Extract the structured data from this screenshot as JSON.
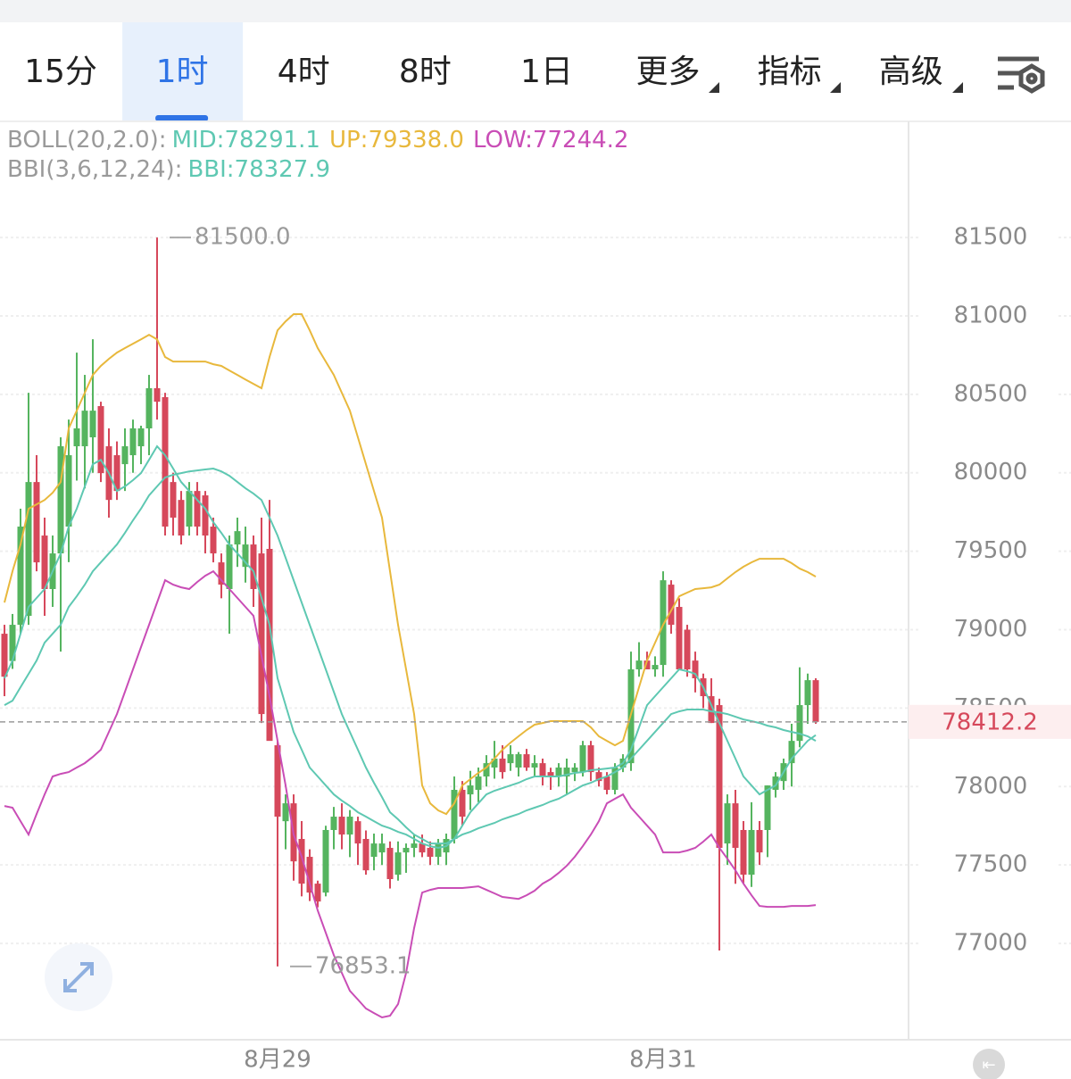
{
  "tabs": [
    "15分",
    "1时",
    "4时",
    "8时",
    "1日",
    "更多",
    "指标",
    "高级"
  ],
  "selected_tab": 1,
  "chart_data": {
    "type": "candlestick",
    "indicator_groups": [
      "BOLL(20,2.0):",
      "BBI(3,6,12,24):"
    ],
    "max_label": "81500.0",
    "min_label": "76853.1",
    "up_color": "#55b45f",
    "down_color": "#d6485b",
    "ylim": [
      76386,
      82240
    ],
    "yticks": [
      77000,
      77500,
      78000,
      78500,
      79000,
      79500,
      80000,
      80500,
      81000,
      81500
    ],
    "grid": true,
    "categories": [
      null,
      null,
      null,
      null,
      null,
      null,
      null,
      null,
      null,
      null,
      null,
      null,
      null,
      null,
      null,
      null,
      null,
      null,
      null,
      null,
      null,
      null,
      null,
      null,
      null,
      null,
      null,
      null,
      null,
      null,
      null,
      null,
      null,
      null,
      "8月29",
      null,
      null,
      null,
      null,
      null,
      null,
      null,
      null,
      null,
      null,
      null,
      null,
      null,
      null,
      null,
      null,
      null,
      null,
      null,
      null,
      null,
      null,
      null,
      null,
      null,
      null,
      null,
      null,
      null,
      null,
      null,
      null,
      null,
      null,
      null,
      null,
      null,
      null,
      null,
      null,
      null,
      null,
      null,
      null,
      null,
      null,
      null,
      "8月31",
      null,
      null,
      null,
      null,
      null,
      null,
      null,
      null,
      null,
      null,
      null,
      null,
      null,
      null,
      null,
      null,
      null,
      null,
      null
    ],
    "ohlc": [
      [
        78974,
        79031,
        78576,
        78700
      ],
      [
        78800,
        79100,
        78750,
        79031
      ],
      [
        79031,
        79771,
        78974,
        79657
      ],
      [
        79088,
        80510,
        79031,
        79941
      ],
      [
        79941,
        80112,
        79372,
        79429
      ],
      [
        79600,
        79714,
        79088,
        79259
      ],
      [
        79259,
        79600,
        79145,
        79486
      ],
      [
        79486,
        80226,
        78860,
        80169
      ],
      [
        79657,
        80339,
        79430,
        80112
      ],
      [
        80169,
        80766,
        79950,
        80283
      ],
      [
        80169,
        80624,
        79900,
        80396
      ],
      [
        80226,
        80851,
        80000,
        80396
      ],
      [
        80425,
        80453,
        79941,
        79998
      ],
      [
        80169,
        80283,
        79714,
        79827
      ],
      [
        80112,
        80200,
        79827,
        79884
      ],
      [
        80055,
        80283,
        79884,
        80169
      ],
      [
        80112,
        80339,
        80000,
        80283
      ],
      [
        80169,
        80300,
        80055,
        80283
      ],
      [
        80283,
        80624,
        80112,
        80539
      ],
      [
        80539,
        81500,
        80339,
        80453
      ],
      [
        80482,
        80510,
        79600,
        79657
      ],
      [
        79941,
        80000,
        79600,
        79714
      ],
      [
        79827,
        79884,
        79543,
        79600
      ],
      [
        79657,
        79941,
        79600,
        79884
      ],
      [
        79884,
        79941,
        79600,
        79657
      ],
      [
        79856,
        79884,
        79486,
        79600
      ],
      [
        79657,
        79714,
        79429,
        79486
      ],
      [
        79429,
        79486,
        79200,
        79287
      ],
      [
        79259,
        79600,
        78974,
        79543
      ],
      [
        79543,
        79714,
        79400,
        79628
      ],
      [
        79400,
        79657,
        79300,
        79543
      ],
      [
        79543,
        79600,
        79145,
        79259
      ],
      [
        79486,
        79714,
        78405,
        78462
      ],
      [
        79515,
        79827,
        78300,
        78291
      ],
      [
        78263,
        78291,
        76853.1,
        77808
      ],
      [
        77779,
        77950,
        77600,
        77893
      ],
      [
        77893,
        77950,
        77400,
        77523
      ],
      [
        77666,
        77780,
        77300,
        77381
      ],
      [
        77552,
        77600,
        77270,
        77324
      ],
      [
        77381,
        77400,
        77230,
        77267
      ],
      [
        77324,
        77750,
        77300,
        77723
      ],
      [
        77723,
        77870,
        77600,
        77808
      ],
      [
        77808,
        77893,
        77600,
        77694
      ],
      [
        77694,
        77850,
        77550,
        77808
      ],
      [
        77779,
        77808,
        77500,
        77637
      ],
      [
        77666,
        77720,
        77438,
        77466
      ],
      [
        77552,
        77700,
        77466,
        77637
      ],
      [
        77580,
        77700,
        77500,
        77637
      ],
      [
        77609,
        77650,
        77350,
        77410
      ],
      [
        77438,
        77650,
        77400,
        77580
      ],
      [
        77580,
        77637,
        77450,
        77609
      ],
      [
        77609,
        77694,
        77550,
        77637
      ],
      [
        77637,
        77694,
        77550,
        77580
      ],
      [
        77609,
        77650,
        77500,
        77552
      ],
      [
        77552,
        77666,
        77500,
        77637
      ],
      [
        77580,
        77700,
        77500,
        77666
      ],
      [
        77666,
        78064,
        77637,
        77979
      ],
      [
        77979,
        78035,
        77750,
        77808
      ],
      [
        77950,
        78100,
        77850,
        78007
      ],
      [
        77979,
        78121,
        77900,
        78064
      ],
      [
        78064,
        78200,
        78000,
        78149
      ],
      [
        78121,
        78291,
        78050,
        78178
      ],
      [
        78178,
        78263,
        78050,
        78092
      ],
      [
        78149,
        78263,
        78100,
        78206
      ],
      [
        78121,
        78220,
        78064,
        78206
      ],
      [
        78206,
        78240,
        78100,
        78121
      ],
      [
        78121,
        78200,
        78064,
        78149
      ],
      [
        78149,
        78178,
        78007,
        78064
      ],
      [
        78092,
        78120,
        77979,
        78064
      ],
      [
        78064,
        78149,
        78000,
        78121
      ],
      [
        78064,
        78178,
        77950,
        78121
      ],
      [
        78092,
        78149,
        78035,
        78121
      ],
      [
        78092,
        78291,
        78064,
        78263
      ],
      [
        78263,
        78291,
        78035,
        78092
      ],
      [
        78092,
        78121,
        78000,
        78035
      ],
      [
        78064,
        78092,
        77950,
        77979
      ],
      [
        77979,
        78149,
        77950,
        78121
      ],
      [
        78121,
        78206,
        78092,
        78178
      ],
      [
        78149,
        78860,
        78100,
        78747
      ],
      [
        78747,
        78920,
        78700,
        78803
      ],
      [
        78803,
        78860,
        78747,
        78747
      ],
      [
        78747,
        78830,
        78700,
        78775
      ],
      [
        78775,
        79372,
        78700,
        79315
      ],
      [
        79287,
        79315,
        78974,
        79031
      ],
      [
        79145,
        79200,
        78747,
        78747
      ],
      [
        79000,
        79031,
        78700,
        78747
      ],
      [
        78803,
        78860,
        78600,
        78690
      ],
      [
        78690,
        78720,
        78500,
        78576
      ],
      [
        78576,
        78690,
        78405,
        78405
      ],
      [
        78519,
        78560,
        76955,
        77609
      ],
      [
        77637,
        77950,
        77500,
        77893
      ],
      [
        77893,
        77979,
        77380,
        77609
      ],
      [
        77723,
        77780,
        77380,
        77438
      ],
      [
        77438,
        77900,
        77360,
        77723
      ],
      [
        77723,
        77780,
        77500,
        77580
      ],
      [
        77723,
        78007,
        77550,
        78007
      ],
      [
        77979,
        78092,
        77930,
        78064
      ],
      [
        78035,
        78178,
        77979,
        78149
      ],
      [
        78149,
        78400,
        78000,
        78291
      ],
      [
        78291,
        78760,
        78250,
        78519
      ],
      [
        78519,
        78720,
        78400,
        78678
      ],
      [
        78678,
        78690,
        78400,
        78412.2
      ]
    ],
    "series": [
      {
        "name": "MID:78291.1",
        "color": "#5ec8b2",
        "values": [
          78519,
          78547,
          78633,
          78718,
          78803,
          78917,
          78974,
          79031,
          79145,
          79213,
          79287,
          79372,
          79429,
          79486,
          79543,
          79617,
          79697,
          79771,
          79856,
          79913,
          79970,
          79987,
          79998,
          80009,
          80015,
          80021,
          80027,
          80009,
          79981,
          79941,
          79901,
          79867,
          79827,
          79714,
          79600,
          79458,
          79315,
          79173,
          79031,
          78889,
          78747,
          78604,
          78462,
          78348,
          78235,
          78121,
          78024,
          77933,
          77836,
          77791,
          77740,
          77694,
          77666,
          77637,
          77637,
          77637,
          77666,
          77694,
          77711,
          77734,
          77751,
          77768,
          77791,
          77808,
          77825,
          77848,
          77865,
          77882,
          77905,
          77922,
          77950,
          77979,
          78007,
          78024,
          78047,
          78064,
          78092,
          78121,
          78178,
          78235,
          78291,
          78348,
          78405,
          78462,
          78479,
          78491,
          78491,
          78491,
          78479,
          78473,
          78462,
          78445,
          78428,
          78417,
          78405,
          78388,
          78377,
          78360,
          78348,
          78337,
          78320,
          78291.1
        ]
      },
      {
        "name": "UP:79338.0",
        "color": "#e8b83c",
        "values": [
          79173,
          79372,
          79543,
          79771,
          79799,
          79827,
          79873,
          79941,
          80283,
          80396,
          80510,
          80624,
          80681,
          80726,
          80766,
          80795,
          80823,
          80851,
          80880,
          80851,
          80738,
          80709,
          80709,
          80709,
          80709,
          80709,
          80692,
          80681,
          80652,
          80624,
          80595,
          80567,
          80539,
          80738,
          80908,
          80965,
          81011,
          81011,
          80908,
          80795,
          80709,
          80624,
          80510,
          80396,
          80226,
          80055,
          79884,
          79714,
          79372,
          79031,
          78747,
          78462,
          78007,
          77893,
          77848,
          77825,
          77893,
          78007,
          78047,
          78087,
          78121,
          78178,
          78235,
          78280,
          78320,
          78360,
          78394,
          78405,
          78417,
          78417,
          78417,
          78417,
          78417,
          78377,
          78320,
          78291,
          78263,
          78291,
          78462,
          78633,
          78803,
          78917,
          79031,
          79122,
          79213,
          79236,
          79259,
          79264,
          79270,
          79287,
          79327,
          79367,
          79401,
          79429,
          79452,
          79452,
          79452,
          79452,
          79424,
          79389,
          79367,
          79338.0
        ]
      },
      {
        "name": "LOW:77244.2",
        "color": "#c94db6",
        "values": [
          77876,
          77865,
          77779,
          77694,
          77825,
          77950,
          78064,
          78081,
          78092,
          78121,
          78149,
          78189,
          78235,
          78348,
          78462,
          78604,
          78747,
          78889,
          79031,
          79173,
          79315,
          79287,
          79270,
          79259,
          79304,
          79344,
          79372,
          79315,
          79259,
          79202,
          79145,
          79088,
          78832,
          78576,
          78291,
          78007,
          77694,
          77552,
          77381,
          77210,
          77068,
          76926,
          76812,
          76698,
          76642,
          76585,
          76556,
          76528,
          76539,
          76613,
          76812,
          77097,
          77324,
          77341,
          77353,
          77353,
          77353,
          77353,
          77358,
          77364,
          77341,
          77319,
          77296,
          77290,
          77284,
          77307,
          77336,
          77381,
          77410,
          77449,
          77495,
          77552,
          77620,
          77694,
          77779,
          77893,
          77922,
          77950,
          77865,
          77808,
          77751,
          77694,
          77580,
          77580,
          77580,
          77592,
          77609,
          77649,
          77694,
          77609,
          77540,
          77466,
          77381,
          77307,
          77239,
          77233,
          77233,
          77233,
          77239,
          77239,
          77239,
          77244.2
        ]
      },
      {
        "name": "BBI:78327.9",
        "color": "#5ec8b2",
        "values": [
          78690,
          78803,
          78974,
          79145,
          79202,
          79259,
          79372,
          79486,
          79657,
          79771,
          79913,
          80055,
          80083,
          79998,
          79884,
          79913,
          79953,
          79998,
          80083,
          80169,
          80112,
          80027,
          79941,
          79884,
          79827,
          79771,
          79685,
          79617,
          79543,
          79486,
          79429,
          79372,
          79202,
          79031,
          78690,
          78519,
          78348,
          78235,
          78121,
          78064,
          78007,
          77950,
          77910,
          77876,
          77836,
          77808,
          77779,
          77751,
          77734,
          77711,
          77694,
          77666,
          77637,
          77620,
          77609,
          77620,
          77666,
          77751,
          77836,
          77893,
          77950,
          77973,
          77990,
          78007,
          78024,
          78047,
          78064,
          78064,
          78064,
          78064,
          78075,
          78087,
          78092,
          78104,
          78109,
          78115,
          78121,
          78149,
          78235,
          78377,
          78519,
          78576,
          78633,
          78690,
          78747,
          78735,
          78718,
          78633,
          78519,
          78405,
          78291,
          78178,
          78064,
          78007,
          77950,
          77979,
          78007,
          78092,
          78178,
          78235,
          78291,
          78327.9
        ]
      }
    ]
  }
}
